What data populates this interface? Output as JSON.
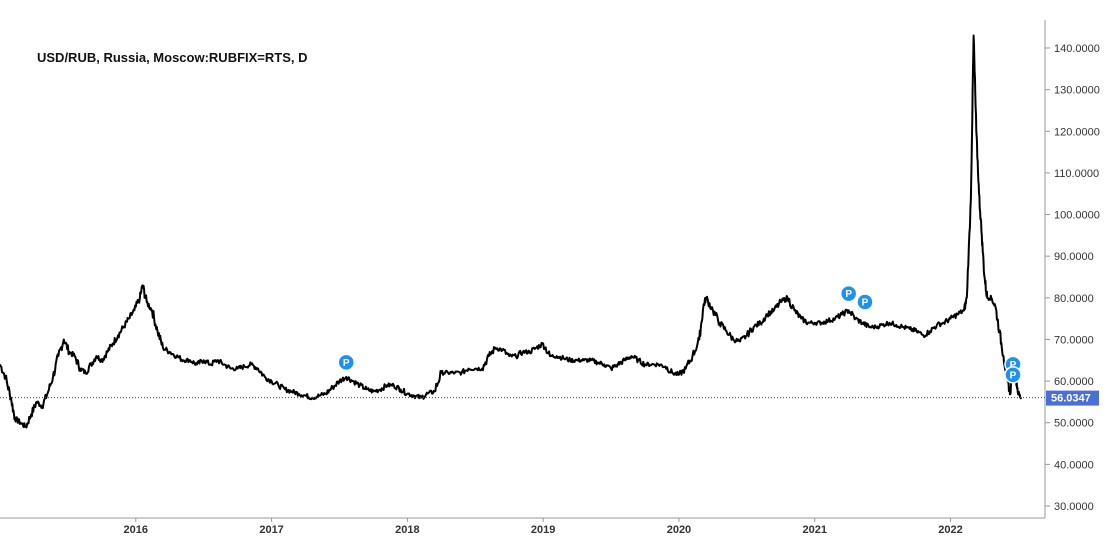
{
  "chart_data": {
    "type": "line",
    "title": "USD/RUB, Russia, Moscow:RUBFIX=RTS, D",
    "xlabel": "",
    "ylabel": "",
    "ylim": [
      27,
      146
    ],
    "xlim": [
      2015.0,
      2022.6
    ],
    "y_ticks": [
      "140.0000",
      "130.0000",
      "120.0000",
      "110.0000",
      "100.0000",
      "90.0000",
      "80.0000",
      "70.0000",
      "60.0000",
      "50.0000",
      "40.0000",
      "30.0000"
    ],
    "x_ticks": [
      {
        "label": "2016",
        "value": 2016
      },
      {
        "label": "2017",
        "value": 2017
      },
      {
        "label": "2018",
        "value": 2018
      },
      {
        "label": "2019",
        "value": 2019
      },
      {
        "label": "2020",
        "value": 2020
      },
      {
        "label": "2021",
        "value": 2021
      },
      {
        "label": "2022",
        "value": 2022
      }
    ],
    "last_value": 56.0347,
    "last_value_label": "56.0347",
    "series": [
      {
        "color": "#000000",
        "points": [
          [
            2015.0,
            64.0
          ],
          [
            2015.04,
            61.0
          ],
          [
            2015.08,
            56.0
          ],
          [
            2015.11,
            51.0
          ],
          [
            2015.15,
            50.0
          ],
          [
            2015.19,
            49.0
          ],
          [
            2015.23,
            52.0
          ],
          [
            2015.27,
            55.0
          ],
          [
            2015.31,
            54.0
          ],
          [
            2015.35,
            57.0
          ],
          [
            2015.39,
            61.0
          ],
          [
            2015.43,
            66.0
          ],
          [
            2015.47,
            70.0
          ],
          [
            2015.51,
            67.0
          ],
          [
            2015.55,
            66.0
          ],
          [
            2015.59,
            63.0
          ],
          [
            2015.63,
            62.0
          ],
          [
            2015.67,
            64.0
          ],
          [
            2015.71,
            66.0
          ],
          [
            2015.75,
            65.0
          ],
          [
            2015.79,
            67.0
          ],
          [
            2015.83,
            69.0
          ],
          [
            2015.87,
            71.0
          ],
          [
            2015.91,
            73.0
          ],
          [
            2015.95,
            75.0
          ],
          [
            2015.99,
            77.0
          ],
          [
            2016.03,
            80.0
          ],
          [
            2016.05,
            83.0
          ],
          [
            2016.08,
            79.0
          ],
          [
            2016.12,
            77.0
          ],
          [
            2016.16,
            72.0
          ],
          [
            2016.2,
            68.0
          ],
          [
            2016.25,
            67.0
          ],
          [
            2016.3,
            66.0
          ],
          [
            2016.35,
            65.0
          ],
          [
            2016.4,
            65.0
          ],
          [
            2016.45,
            64.0
          ],
          [
            2016.5,
            65.0
          ],
          [
            2016.55,
            64.0
          ],
          [
            2016.6,
            65.0
          ],
          [
            2016.65,
            64.0
          ],
          [
            2016.7,
            63.0
          ],
          [
            2016.75,
            63.0
          ],
          [
            2016.8,
            63.5
          ],
          [
            2016.85,
            64.0
          ],
          [
            2016.9,
            63.0
          ],
          [
            2016.95,
            61.0
          ],
          [
            2017.0,
            60.0
          ],
          [
            2017.05,
            59.0
          ],
          [
            2017.1,
            58.0
          ],
          [
            2017.15,
            57.5
          ],
          [
            2017.2,
            57.0
          ],
          [
            2017.25,
            56.5
          ],
          [
            2017.3,
            56.0
          ],
          [
            2017.35,
            56.5
          ],
          [
            2017.4,
            57.0
          ],
          [
            2017.45,
            58.5
          ],
          [
            2017.5,
            60.0
          ],
          [
            2017.55,
            61.0
          ],
          [
            2017.6,
            60.0
          ],
          [
            2017.65,
            59.0
          ],
          [
            2017.7,
            58.0
          ],
          [
            2017.75,
            57.5
          ],
          [
            2017.8,
            58.0
          ],
          [
            2017.85,
            59.0
          ],
          [
            2017.9,
            59.0
          ],
          [
            2017.95,
            58.0
          ],
          [
            2018.0,
            57.0
          ],
          [
            2018.05,
            56.5
          ],
          [
            2018.1,
            56.0
          ],
          [
            2018.15,
            57.0
          ],
          [
            2018.2,
            57.5
          ],
          [
            2018.25,
            62.0
          ],
          [
            2018.3,
            62.0
          ],
          [
            2018.35,
            62.0
          ],
          [
            2018.4,
            62.0
          ],
          [
            2018.45,
            63.0
          ],
          [
            2018.5,
            63.0
          ],
          [
            2018.55,
            63.0
          ],
          [
            2018.6,
            66.0
          ],
          [
            2018.65,
            68.0
          ],
          [
            2018.7,
            67.5
          ],
          [
            2018.75,
            66.0
          ],
          [
            2018.8,
            66.0
          ],
          [
            2018.85,
            67.0
          ],
          [
            2018.9,
            67.0
          ],
          [
            2018.95,
            68.0
          ],
          [
            2019.0,
            69.0
          ],
          [
            2019.05,
            66.0
          ],
          [
            2019.1,
            66.0
          ],
          [
            2019.15,
            65.5
          ],
          [
            2019.2,
            65.0
          ],
          [
            2019.25,
            65.0
          ],
          [
            2019.3,
            65.0
          ],
          [
            2019.35,
            65.0
          ],
          [
            2019.4,
            64.5
          ],
          [
            2019.45,
            64.0
          ],
          [
            2019.5,
            63.0
          ],
          [
            2019.55,
            64.0
          ],
          [
            2019.6,
            65.0
          ],
          [
            2019.65,
            66.0
          ],
          [
            2019.7,
            65.0
          ],
          [
            2019.75,
            64.0
          ],
          [
            2019.8,
            64.0
          ],
          [
            2019.85,
            64.0
          ],
          [
            2019.9,
            63.5
          ],
          [
            2019.95,
            62.0
          ],
          [
            2020.0,
            61.5
          ],
          [
            2020.05,
            63.0
          ],
          [
            2020.1,
            66.0
          ],
          [
            2020.15,
            70.0
          ],
          [
            2020.18,
            78.0
          ],
          [
            2020.2,
            80.0
          ],
          [
            2020.25,
            77.0
          ],
          [
            2020.3,
            74.0
          ],
          [
            2020.35,
            72.0
          ],
          [
            2020.4,
            70.0
          ],
          [
            2020.45,
            69.5
          ],
          [
            2020.5,
            71.0
          ],
          [
            2020.55,
            73.0
          ],
          [
            2020.6,
            74.0
          ],
          [
            2020.65,
            76.0
          ],
          [
            2020.7,
            77.0
          ],
          [
            2020.75,
            79.0
          ],
          [
            2020.8,
            80.0
          ],
          [
            2020.85,
            77.0
          ],
          [
            2020.9,
            75.0
          ],
          [
            2020.95,
            74.0
          ],
          [
            2021.0,
            74.0
          ],
          [
            2021.05,
            74.0
          ],
          [
            2021.1,
            74.5
          ],
          [
            2021.15,
            75.0
          ],
          [
            2021.2,
            76.0
          ],
          [
            2021.25,
            77.0
          ],
          [
            2021.3,
            75.0
          ],
          [
            2021.35,
            74.0
          ],
          [
            2021.4,
            73.0
          ],
          [
            2021.45,
            73.0
          ],
          [
            2021.5,
            73.5
          ],
          [
            2021.55,
            74.0
          ],
          [
            2021.6,
            73.5
          ],
          [
            2021.65,
            73.0
          ],
          [
            2021.7,
            72.5
          ],
          [
            2021.75,
            72.0
          ],
          [
            2021.8,
            71.0
          ],
          [
            2021.85,
            72.0
          ],
          [
            2021.9,
            73.5
          ],
          [
            2021.95,
            74.0
          ],
          [
            2022.0,
            75.0
          ],
          [
            2022.05,
            76.0
          ],
          [
            2022.1,
            77.0
          ],
          [
            2022.12,
            80.0
          ],
          [
            2022.15,
            104.0
          ],
          [
            2022.17,
            143.0
          ],
          [
            2022.19,
            120.0
          ],
          [
            2022.21,
            105.0
          ],
          [
            2022.23,
            95.0
          ],
          [
            2022.25,
            85.0
          ],
          [
            2022.27,
            80.0
          ],
          [
            2022.3,
            80.0
          ],
          [
            2022.33,
            78.0
          ],
          [
            2022.36,
            72.0
          ],
          [
            2022.39,
            66.0
          ],
          [
            2022.42,
            60.0
          ],
          [
            2022.44,
            57.0
          ],
          [
            2022.46,
            65.0
          ],
          [
            2022.48,
            61.0
          ],
          [
            2022.5,
            57.0
          ],
          [
            2022.52,
            56.0
          ]
        ]
      }
    ],
    "annotations": [
      {
        "label": "P",
        "x": 2017.55,
        "y": 64.5
      },
      {
        "label": "P",
        "x": 2021.25,
        "y": 81.0
      },
      {
        "label": "P",
        "x": 2021.37,
        "y": 79.0
      },
      {
        "label": "P",
        "x": 2022.46,
        "y": 64.0
      },
      {
        "label": "P",
        "x": 2022.46,
        "y": 61.5
      }
    ],
    "grid": false,
    "legend": "none"
  },
  "colors": {
    "line": "#000000",
    "axis": "#999999",
    "last_value_bg": "#4a6fd6",
    "last_value_line": "#2b3f9e",
    "marker": "#1e90f0"
  }
}
